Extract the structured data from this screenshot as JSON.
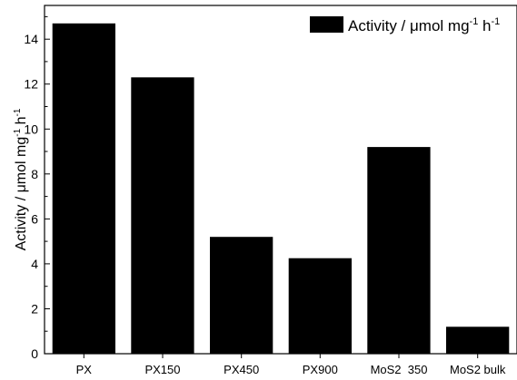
{
  "chart_data": {
    "type": "bar",
    "categories": [
      "PX",
      "PX150",
      "PX450",
      "PX900",
      "MoS2  350",
      "MoS2 bulk"
    ],
    "values": [
      14.7,
      12.3,
      5.2,
      4.25,
      9.2,
      1.2
    ],
    "ylabel": {
      "text": "Activity / μmol mg",
      "sup1": "-1",
      "mid": " h",
      "sup2": "-1"
    },
    "xlabel": "",
    "yticks": [
      0,
      2,
      4,
      6,
      8,
      10,
      12,
      14
    ],
    "ylim": [
      0,
      15.5
    ],
    "legend": {
      "text": "Activity / μmol mg",
      "sup1": "-1",
      "mid": " h",
      "sup2": "-1",
      "placement": "top-right"
    },
    "grid": false,
    "bar_color": "#000000"
  }
}
